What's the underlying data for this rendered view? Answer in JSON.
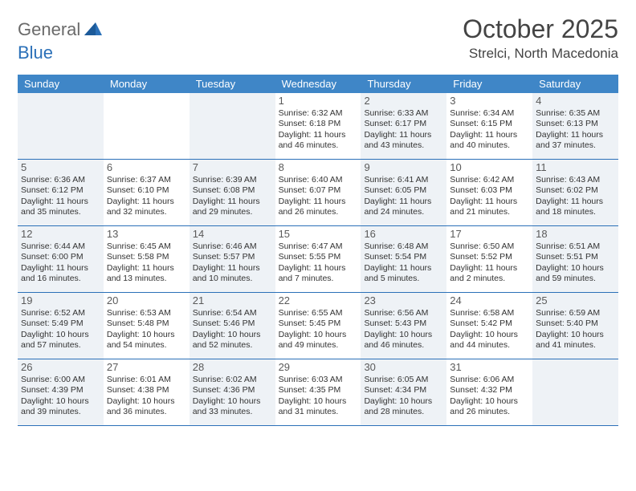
{
  "logo": {
    "text1": "General",
    "text2": "Blue"
  },
  "title": "October 2025",
  "location": "Strelci, North Macedonia",
  "colors": {
    "header_bg": "#3f86c7",
    "rule": "#2b70b8",
    "shade": "#eef2f6",
    "logo_gray": "#6a6a6a",
    "logo_blue": "#2b70b8"
  },
  "day_names": [
    "Sunday",
    "Monday",
    "Tuesday",
    "Wednesday",
    "Thursday",
    "Friday",
    "Saturday"
  ],
  "weeks": [
    [
      {
        "blank": true,
        "shade": true
      },
      {
        "blank": true
      },
      {
        "blank": true,
        "shade": true
      },
      {
        "day": "1",
        "sunrise": "Sunrise: 6:32 AM",
        "sunset": "Sunset: 6:18 PM",
        "dl1": "Daylight: 11 hours",
        "dl2": "and 46 minutes."
      },
      {
        "day": "2",
        "shade": true,
        "sunrise": "Sunrise: 6:33 AM",
        "sunset": "Sunset: 6:17 PM",
        "dl1": "Daylight: 11 hours",
        "dl2": "and 43 minutes."
      },
      {
        "day": "3",
        "sunrise": "Sunrise: 6:34 AM",
        "sunset": "Sunset: 6:15 PM",
        "dl1": "Daylight: 11 hours",
        "dl2": "and 40 minutes."
      },
      {
        "day": "4",
        "shade": true,
        "sunrise": "Sunrise: 6:35 AM",
        "sunset": "Sunset: 6:13 PM",
        "dl1": "Daylight: 11 hours",
        "dl2": "and 37 minutes."
      }
    ],
    [
      {
        "day": "5",
        "shade": true,
        "sunrise": "Sunrise: 6:36 AM",
        "sunset": "Sunset: 6:12 PM",
        "dl1": "Daylight: 11 hours",
        "dl2": "and 35 minutes."
      },
      {
        "day": "6",
        "sunrise": "Sunrise: 6:37 AM",
        "sunset": "Sunset: 6:10 PM",
        "dl1": "Daylight: 11 hours",
        "dl2": "and 32 minutes."
      },
      {
        "day": "7",
        "shade": true,
        "sunrise": "Sunrise: 6:39 AM",
        "sunset": "Sunset: 6:08 PM",
        "dl1": "Daylight: 11 hours",
        "dl2": "and 29 minutes."
      },
      {
        "day": "8",
        "sunrise": "Sunrise: 6:40 AM",
        "sunset": "Sunset: 6:07 PM",
        "dl1": "Daylight: 11 hours",
        "dl2": "and 26 minutes."
      },
      {
        "day": "9",
        "shade": true,
        "sunrise": "Sunrise: 6:41 AM",
        "sunset": "Sunset: 6:05 PM",
        "dl1": "Daylight: 11 hours",
        "dl2": "and 24 minutes."
      },
      {
        "day": "10",
        "sunrise": "Sunrise: 6:42 AM",
        "sunset": "Sunset: 6:03 PM",
        "dl1": "Daylight: 11 hours",
        "dl2": "and 21 minutes."
      },
      {
        "day": "11",
        "shade": true,
        "sunrise": "Sunrise: 6:43 AM",
        "sunset": "Sunset: 6:02 PM",
        "dl1": "Daylight: 11 hours",
        "dl2": "and 18 minutes."
      }
    ],
    [
      {
        "day": "12",
        "shade": true,
        "sunrise": "Sunrise: 6:44 AM",
        "sunset": "Sunset: 6:00 PM",
        "dl1": "Daylight: 11 hours",
        "dl2": "and 16 minutes."
      },
      {
        "day": "13",
        "sunrise": "Sunrise: 6:45 AM",
        "sunset": "Sunset: 5:58 PM",
        "dl1": "Daylight: 11 hours",
        "dl2": "and 13 minutes."
      },
      {
        "day": "14",
        "shade": true,
        "sunrise": "Sunrise: 6:46 AM",
        "sunset": "Sunset: 5:57 PM",
        "dl1": "Daylight: 11 hours",
        "dl2": "and 10 minutes."
      },
      {
        "day": "15",
        "sunrise": "Sunrise: 6:47 AM",
        "sunset": "Sunset: 5:55 PM",
        "dl1": "Daylight: 11 hours",
        "dl2": "and 7 minutes."
      },
      {
        "day": "16",
        "shade": true,
        "sunrise": "Sunrise: 6:48 AM",
        "sunset": "Sunset: 5:54 PM",
        "dl1": "Daylight: 11 hours",
        "dl2": "and 5 minutes."
      },
      {
        "day": "17",
        "sunrise": "Sunrise: 6:50 AM",
        "sunset": "Sunset: 5:52 PM",
        "dl1": "Daylight: 11 hours",
        "dl2": "and 2 minutes."
      },
      {
        "day": "18",
        "shade": true,
        "sunrise": "Sunrise: 6:51 AM",
        "sunset": "Sunset: 5:51 PM",
        "dl1": "Daylight: 10 hours",
        "dl2": "and 59 minutes."
      }
    ],
    [
      {
        "day": "19",
        "shade": true,
        "sunrise": "Sunrise: 6:52 AM",
        "sunset": "Sunset: 5:49 PM",
        "dl1": "Daylight: 10 hours",
        "dl2": "and 57 minutes."
      },
      {
        "day": "20",
        "sunrise": "Sunrise: 6:53 AM",
        "sunset": "Sunset: 5:48 PM",
        "dl1": "Daylight: 10 hours",
        "dl2": "and 54 minutes."
      },
      {
        "day": "21",
        "shade": true,
        "sunrise": "Sunrise: 6:54 AM",
        "sunset": "Sunset: 5:46 PM",
        "dl1": "Daylight: 10 hours",
        "dl2": "and 52 minutes."
      },
      {
        "day": "22",
        "sunrise": "Sunrise: 6:55 AM",
        "sunset": "Sunset: 5:45 PM",
        "dl1": "Daylight: 10 hours",
        "dl2": "and 49 minutes."
      },
      {
        "day": "23",
        "shade": true,
        "sunrise": "Sunrise: 6:56 AM",
        "sunset": "Sunset: 5:43 PM",
        "dl1": "Daylight: 10 hours",
        "dl2": "and 46 minutes."
      },
      {
        "day": "24",
        "sunrise": "Sunrise: 6:58 AM",
        "sunset": "Sunset: 5:42 PM",
        "dl1": "Daylight: 10 hours",
        "dl2": "and 44 minutes."
      },
      {
        "day": "25",
        "shade": true,
        "sunrise": "Sunrise: 6:59 AM",
        "sunset": "Sunset: 5:40 PM",
        "dl1": "Daylight: 10 hours",
        "dl2": "and 41 minutes."
      }
    ],
    [
      {
        "day": "26",
        "shade": true,
        "sunrise": "Sunrise: 6:00 AM",
        "sunset": "Sunset: 4:39 PM",
        "dl1": "Daylight: 10 hours",
        "dl2": "and 39 minutes."
      },
      {
        "day": "27",
        "sunrise": "Sunrise: 6:01 AM",
        "sunset": "Sunset: 4:38 PM",
        "dl1": "Daylight: 10 hours",
        "dl2": "and 36 minutes."
      },
      {
        "day": "28",
        "shade": true,
        "sunrise": "Sunrise: 6:02 AM",
        "sunset": "Sunset: 4:36 PM",
        "dl1": "Daylight: 10 hours",
        "dl2": "and 33 minutes."
      },
      {
        "day": "29",
        "sunrise": "Sunrise: 6:03 AM",
        "sunset": "Sunset: 4:35 PM",
        "dl1": "Daylight: 10 hours",
        "dl2": "and 31 minutes."
      },
      {
        "day": "30",
        "shade": true,
        "sunrise": "Sunrise: 6:05 AM",
        "sunset": "Sunset: 4:34 PM",
        "dl1": "Daylight: 10 hours",
        "dl2": "and 28 minutes."
      },
      {
        "day": "31",
        "sunrise": "Sunrise: 6:06 AM",
        "sunset": "Sunset: 4:32 PM",
        "dl1": "Daylight: 10 hours",
        "dl2": "and 26 minutes."
      },
      {
        "blank": true,
        "shade": true
      }
    ]
  ]
}
